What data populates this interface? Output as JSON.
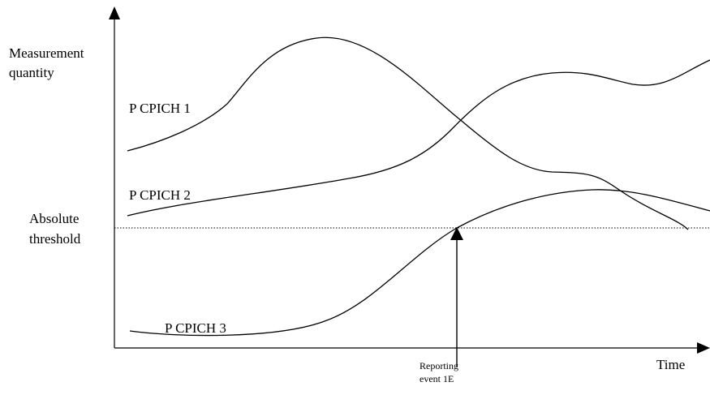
{
  "labels": {
    "y_axis": [
      "Measurement",
      "quantity"
    ],
    "x_axis": "Time",
    "threshold": [
      "Absolute",
      "threshold"
    ],
    "curve_1": "P CPICH 1",
    "curve_2": "P CPICH 2",
    "curve_3": "P CPICH 3",
    "event": [
      "Reporting",
      "event 1E"
    ]
  },
  "colors": {
    "line": "#000000",
    "background": "#ffffff"
  }
}
